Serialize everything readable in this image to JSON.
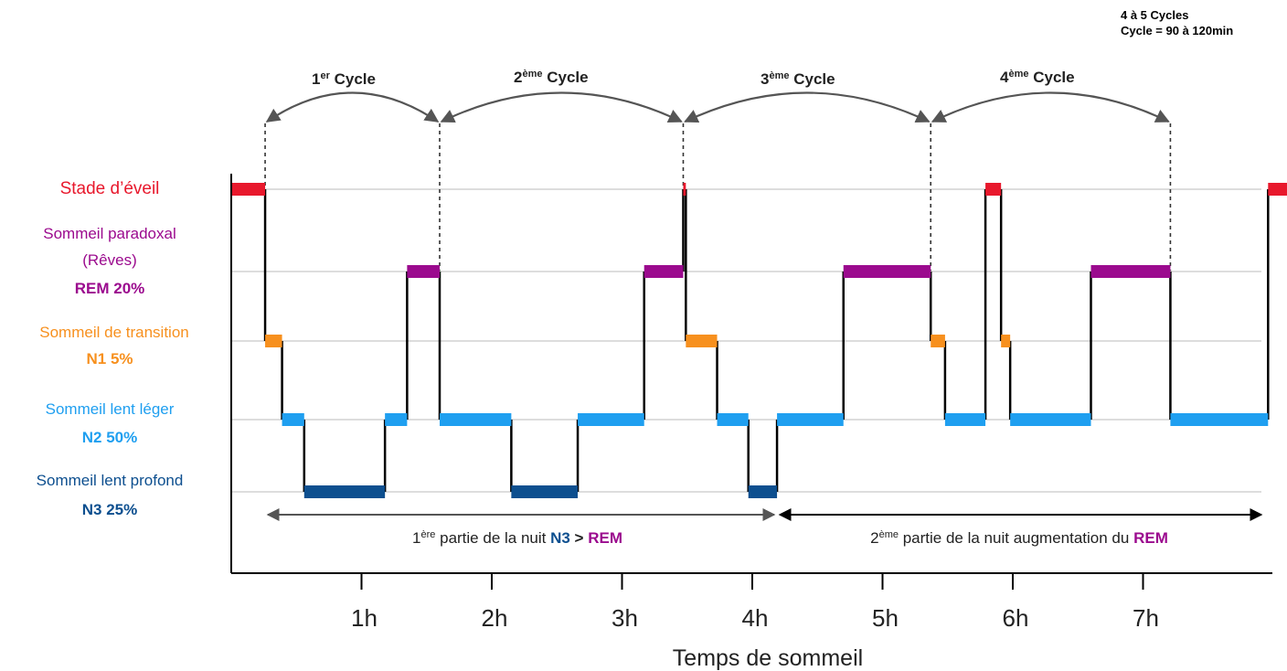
{
  "summary": {
    "line1": "4 à 5 Cycles",
    "line2": "Cycle = 90 à 120min"
  },
  "cycles": [
    {
      "num": "1",
      "sup": "er",
      "word": "Cycle"
    },
    {
      "num": "2",
      "sup": "ème",
      "word": "Cycle"
    },
    {
      "num": "3",
      "sup": "ème",
      "word": "Cycle"
    },
    {
      "num": "4",
      "sup": "ème",
      "word": "Cycle"
    }
  ],
  "stages": {
    "wake": {
      "label": "Stade d’éveil"
    },
    "rem": {
      "label1": "Sommeil paradoxal",
      "label2": "(Rêves)",
      "pct": "REM 20%"
    },
    "n1": {
      "label": "Sommeil de transition",
      "pct": "N1 5%"
    },
    "n2": {
      "label": "Sommeil lent léger",
      "pct": "N2 50%"
    },
    "n3": {
      "label": "Sommeil lent profond",
      "pct": "N3 25%"
    }
  },
  "parts": {
    "first": {
      "num": "1",
      "sup": "ère",
      "text": " partie de la nuit ",
      "n3": "N3",
      "gt": " > ",
      "rem": "REM"
    },
    "second": {
      "num": "2",
      "sup": "ème",
      "text": " partie de la nuit augmentation du ",
      "rem": "REM"
    }
  },
  "colors": {
    "wake": "#e8182c",
    "rem": "#9b0a8e",
    "n1": "#f7901e",
    "n2": "#1f9ff0",
    "n3": "#0d4f8f",
    "axis": "#000000",
    "arrow": "#555555",
    "grid": "#bbbbbb"
  },
  "chart_data": {
    "type": "line",
    "xlabel": "Temps de sommeil",
    "xticks": [
      "1h",
      "2h",
      "3h",
      "4h",
      "5h",
      "6h",
      "7h"
    ],
    "x_unit": "hours",
    "xlim": [
      0,
      8
    ],
    "stage_order": [
      "wake",
      "rem",
      "n1",
      "n2",
      "n3"
    ],
    "segments": [
      {
        "stage": "wake",
        "start": 0.0,
        "end": 0.26
      },
      {
        "stage": "n1",
        "start": 0.26,
        "end": 0.39
      },
      {
        "stage": "n2",
        "start": 0.39,
        "end": 0.56
      },
      {
        "stage": "n3",
        "start": 0.56,
        "end": 1.18
      },
      {
        "stage": "n2",
        "start": 1.18,
        "end": 1.35
      },
      {
        "stage": "rem",
        "start": 1.35,
        "end": 1.6
      },
      {
        "stage": "n2",
        "start": 1.6,
        "end": 2.15
      },
      {
        "stage": "n3",
        "start": 2.15,
        "end": 2.66
      },
      {
        "stage": "n2",
        "start": 2.66,
        "end": 3.17
      },
      {
        "stage": "rem",
        "start": 3.17,
        "end": 3.47
      },
      {
        "stage": "wake",
        "start": 3.47,
        "end": 3.49
      },
      {
        "stage": "n1",
        "start": 3.49,
        "end": 3.73
      },
      {
        "stage": "n2",
        "start": 3.73,
        "end": 3.97
      },
      {
        "stage": "n3",
        "start": 3.97,
        "end": 4.19
      },
      {
        "stage": "n2",
        "start": 4.19,
        "end": 4.7
      },
      {
        "stage": "rem",
        "start": 4.7,
        "end": 5.37
      },
      {
        "stage": "n1",
        "start": 5.37,
        "end": 5.48
      },
      {
        "stage": "n2",
        "start": 5.48,
        "end": 5.79
      },
      {
        "stage": "wake",
        "start": 5.79,
        "end": 5.91
      },
      {
        "stage": "n1",
        "start": 5.91,
        "end": 5.98
      },
      {
        "stage": "n2",
        "start": 5.98,
        "end": 6.6
      },
      {
        "stage": "rem",
        "start": 6.6,
        "end": 7.21
      },
      {
        "stage": "n2",
        "start": 7.21,
        "end": 7.96
      },
      {
        "stage": "wake",
        "start": 7.96,
        "end": 8.2
      }
    ],
    "cycle_boundaries": [
      0.26,
      1.6,
      3.47,
      5.37,
      7.21
    ],
    "part_split": 4.19
  }
}
